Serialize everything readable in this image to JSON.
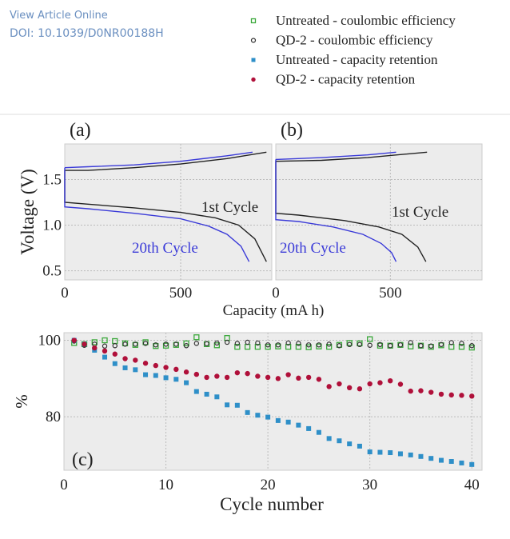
{
  "watermark": {
    "line1": "View Article Online",
    "line2": "DOI: 10.1039/D0NR00188H"
  },
  "legend": [
    {
      "label": "Untreated - coulombic efficiency",
      "marker": "open-square",
      "color": "#3aa83a"
    },
    {
      "label": "QD-2 - coulombic efficiency",
      "marker": "open-circle",
      "color": "#333333"
    },
    {
      "label": "Untreated - capacity retention",
      "marker": "filled-square",
      "color": "#2e8fc8"
    },
    {
      "label": "QD-2 - capacity retention",
      "marker": "filled-circle",
      "color": "#b0103a"
    }
  ],
  "chart_data": [
    {
      "type": "line",
      "panel_label": "(a)",
      "ylabel": "Voltage (V)",
      "xlabel": "Capacity (mA h)",
      "xlim": [
        0,
        893
      ],
      "ylim": [
        0.4,
        1.89
      ],
      "xticks": [
        0,
        500
      ],
      "yticks": [
        0.5,
        1.0,
        1.5
      ],
      "grid": true,
      "annotations": [
        {
          "text": "1st Cycle",
          "color": "#222222"
        },
        {
          "text": "20th Cycle",
          "color": "#3a3ad8"
        }
      ],
      "series": [
        {
          "cycle": "1st",
          "branch": "charge",
          "color": "#222222",
          "points": [
            [
              0,
              1.6
            ],
            [
              100,
              1.6
            ],
            [
              300,
              1.63
            ],
            [
              500,
              1.67
            ],
            [
              700,
              1.73
            ],
            [
              870,
              1.8
            ]
          ]
        },
        {
          "cycle": "20th",
          "branch": "charge",
          "color": "#3a3ad8",
          "points": [
            [
              0,
              1.63
            ],
            [
              100,
              1.64
            ],
            [
              300,
              1.66
            ],
            [
              500,
              1.7
            ],
            [
              700,
              1.76
            ],
            [
              810,
              1.8
            ]
          ]
        },
        {
          "cycle": "1st",
          "branch": "discharge",
          "color": "#222222",
          "points": [
            [
              0,
              1.6
            ],
            [
              0,
              1.25
            ],
            [
              100,
              1.23
            ],
            [
              300,
              1.19
            ],
            [
              500,
              1.14
            ],
            [
              650,
              1.08
            ],
            [
              750,
              1.0
            ],
            [
              820,
              0.85
            ],
            [
              870,
              0.6
            ]
          ]
        },
        {
          "cycle": "20th",
          "branch": "discharge",
          "color": "#3a3ad8",
          "points": [
            [
              0,
              1.63
            ],
            [
              0,
              1.2
            ],
            [
              100,
              1.18
            ],
            [
              300,
              1.13
            ],
            [
              500,
              1.07
            ],
            [
              620,
              0.99
            ],
            [
              700,
              0.9
            ],
            [
              760,
              0.77
            ],
            [
              795,
              0.6
            ]
          ]
        }
      ]
    },
    {
      "type": "line",
      "panel_label": "(b)",
      "xlim": [
        0,
        900
      ],
      "ylim": [
        0.4,
        1.89
      ],
      "xticks": [
        0,
        500
      ],
      "grid": true,
      "annotations": [
        {
          "text": "1st Cycle",
          "color": "#222222"
        },
        {
          "text": "20th Cycle",
          "color": "#3a3ad8"
        }
      ],
      "series": [
        {
          "cycle": "1st",
          "branch": "charge",
          "color": "#222222",
          "points": [
            [
              0,
              1.7
            ],
            [
              200,
              1.71
            ],
            [
              400,
              1.74
            ],
            [
              660,
              1.8
            ]
          ]
        },
        {
          "cycle": "20th",
          "branch": "charge",
          "color": "#3a3ad8",
          "points": [
            [
              0,
              1.72
            ],
            [
              200,
              1.74
            ],
            [
              400,
              1.77
            ],
            [
              525,
              1.8
            ]
          ]
        },
        {
          "cycle": "1st",
          "branch": "discharge",
          "color": "#222222",
          "points": [
            [
              0,
              1.7
            ],
            [
              0,
              1.13
            ],
            [
              100,
              1.11
            ],
            [
              300,
              1.05
            ],
            [
              450,
              0.98
            ],
            [
              550,
              0.9
            ],
            [
              620,
              0.76
            ],
            [
              655,
              0.6
            ]
          ]
        },
        {
          "cycle": "20th",
          "branch": "discharge",
          "color": "#3a3ad8",
          "points": [
            [
              0,
              1.72
            ],
            [
              0,
              1.06
            ],
            [
              100,
              1.04
            ],
            [
              250,
              0.98
            ],
            [
              380,
              0.9
            ],
            [
              460,
              0.8
            ],
            [
              505,
              0.7
            ],
            [
              525,
              0.6
            ]
          ]
        }
      ]
    },
    {
      "type": "scatter",
      "panel_label": "(c)",
      "xlabel": "Cycle number",
      "ylabel": "%",
      "xlim": [
        0,
        41
      ],
      "ylim": [
        66,
        102
      ],
      "xticks": [
        0,
        10,
        20,
        30,
        40
      ],
      "yticks": [
        80,
        100
      ],
      "grid": true,
      "x": [
        1,
        2,
        3,
        4,
        5,
        6,
        7,
        8,
        9,
        10,
        11,
        12,
        13,
        14,
        15,
        16,
        17,
        18,
        19,
        20,
        21,
        22,
        23,
        24,
        25,
        26,
        27,
        28,
        29,
        30,
        31,
        32,
        33,
        34,
        35,
        36,
        37,
        38,
        39,
        40
      ],
      "series": [
        {
          "name": "Untreated - coulombic efficiency",
          "values": [
            99.3,
            99,
            99.5,
            100,
            99.8,
            99.2,
            98.8,
            99.5,
            98.5,
            98.6,
            98.8,
            99.2,
            100.8,
            99,
            98.7,
            100.6,
            98.3,
            98.3,
            98.3,
            98.3,
            98.4,
            98.3,
            98.3,
            98.2,
            98.4,
            98.3,
            98.8,
            99.3,
            99.2,
            100.3,
            98.6,
            98.6,
            98.8,
            98.4,
            98.6,
            98.3,
            98.7,
            98.3,
            98.3,
            98.1
          ]
        },
        {
          "name": "QD-2 - coulombic efficiency",
          "values": [
            99.8,
            98.7,
            99,
            98.5,
            98.6,
            99,
            99,
            99.2,
            98.8,
            99,
            99,
            98.6,
            99.2,
            99.1,
            99.3,
            99.5,
            99.2,
            99.5,
            99.3,
            98.8,
            98.8,
            99.3,
            99.2,
            98.8,
            98.8,
            99,
            98.6,
            98.9,
            98.9,
            98.7,
            98.9,
            98.6,
            98.8,
            99.4,
            98.6,
            98.5,
            98.9,
            99.4,
            99.2,
            98.6
          ]
        },
        {
          "name": "Untreated - capacity retention",
          "values": [
            100,
            99,
            97.4,
            95.6,
            93.9,
            92.8,
            92.3,
            91,
            90.8,
            90.2,
            89.8,
            88.9,
            86.6,
            85.9,
            85.2,
            83.1,
            83,
            81.1,
            80.4,
            79.9,
            79,
            78.6,
            77.8,
            76.9,
            75.9,
            74.3,
            73.7,
            72.9,
            72.3,
            70.8,
            70.7,
            70.6,
            70.3,
            70,
            69.6,
            69.1,
            68.6,
            68.3,
            67.9,
            67.5
          ]
        },
        {
          "name": "QD-2 - capacity retention",
          "values": [
            100,
            99,
            98,
            97.2,
            96.4,
            95.2,
            94.8,
            94,
            93.4,
            92.9,
            92.4,
            91.7,
            91.1,
            90.3,
            90.6,
            90.3,
            91.5,
            91.3,
            90.6,
            90.3,
            90,
            91,
            90.1,
            90.3,
            89.8,
            87.9,
            88.6,
            87.6,
            87.3,
            88.6,
            88.9,
            89.4,
            88.5,
            86.7,
            86.8,
            86.4,
            85.9,
            85.7,
            85.6,
            85.4
          ]
        }
      ]
    }
  ]
}
